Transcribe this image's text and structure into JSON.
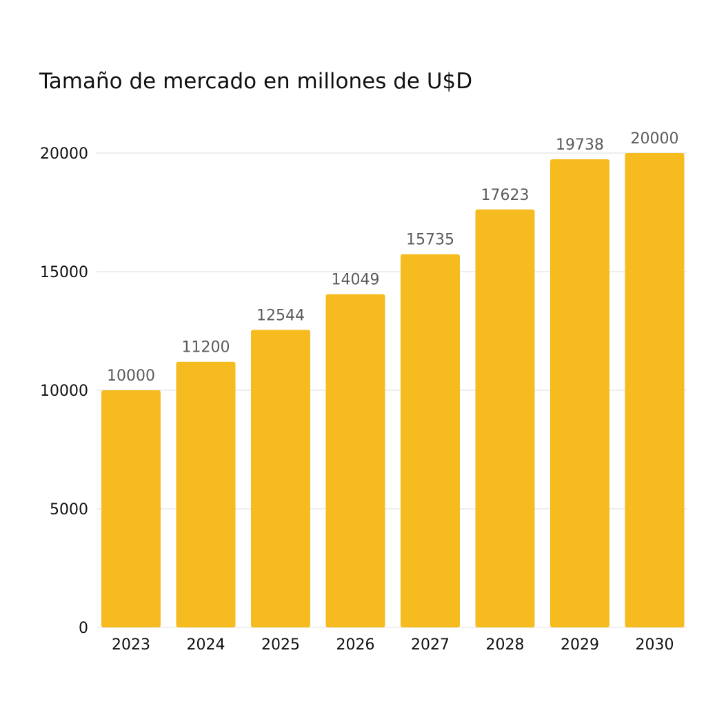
{
  "chart_data": {
    "type": "bar",
    "title": "Tamaño de mercado en millones de U$D",
    "xlabel": "",
    "ylabel": "",
    "categories": [
      "2023",
      "2024",
      "2025",
      "2026",
      "2027",
      "2028",
      "2029",
      "2030"
    ],
    "values": [
      10000,
      11200,
      12544,
      14049,
      15735,
      17623,
      19738,
      20000
    ],
    "data_labels": [
      "10000",
      "11200",
      "12544",
      "14049",
      "15735",
      "17623",
      "19738",
      "20000"
    ],
    "ylim": [
      0,
      20000
    ],
    "yticks": [
      0,
      5000,
      10000,
      15000,
      20000
    ],
    "ytick_labels": [
      "0",
      "5000",
      "10000",
      "15000",
      "20000"
    ],
    "grid": true,
    "legend": "none",
    "colors": {
      "bar": "#F6BB1F",
      "grid": "#dcdcdc",
      "data_label": "#5b5b5b",
      "text": "#111111"
    }
  }
}
